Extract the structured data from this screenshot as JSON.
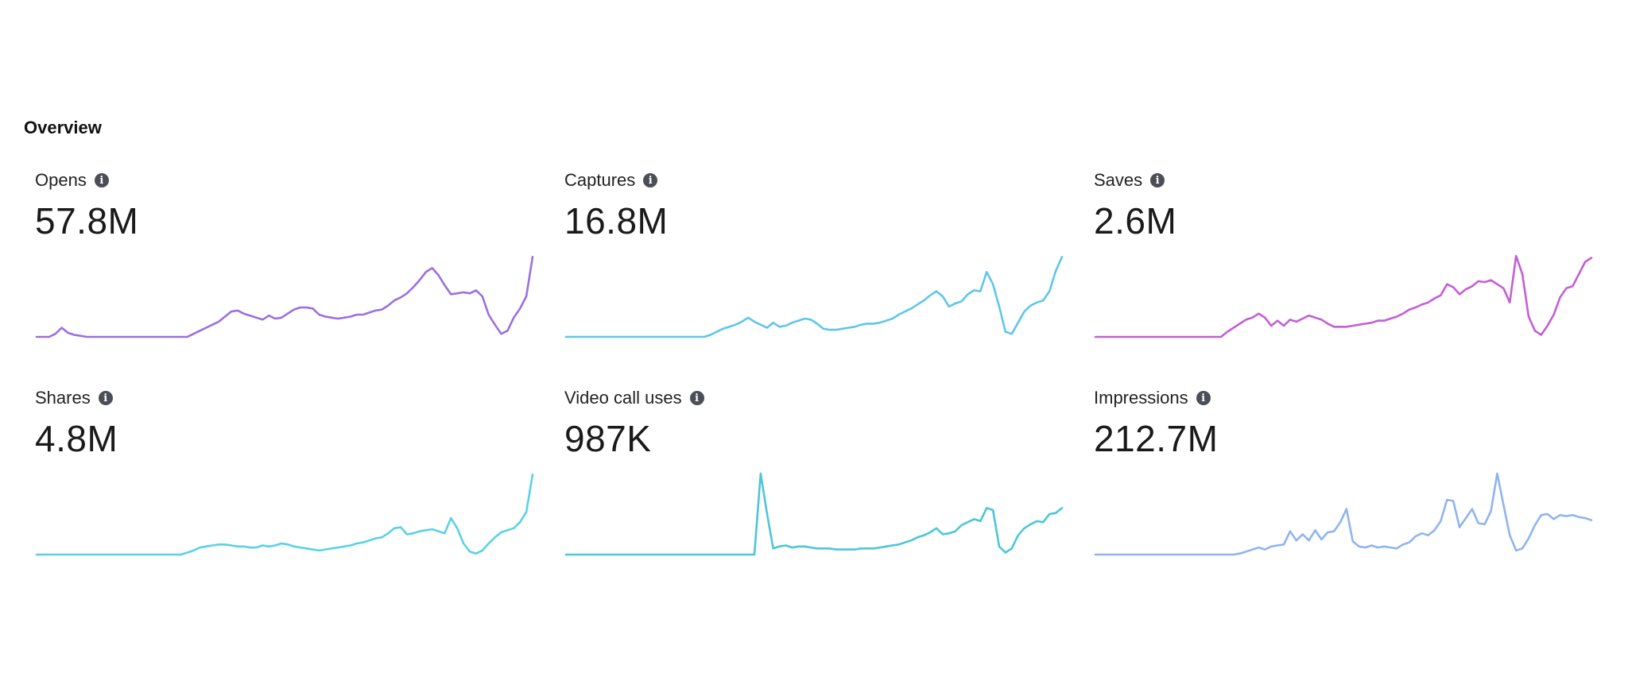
{
  "section": {
    "title": "Overview"
  },
  "info_icon": {
    "glyph": "i",
    "name": "info-icon"
  },
  "chart_data": [
    {
      "type": "line",
      "title": "Opens",
      "value_label": "57.8M",
      "color": "#9b6fe0",
      "x": [
        0,
        1,
        2,
        3,
        4,
        5,
        6,
        7,
        8,
        9,
        10,
        11,
        12,
        13,
        14,
        15,
        16,
        17,
        18,
        19,
        20,
        21,
        22,
        23,
        24,
        25,
        26,
        27,
        28,
        29,
        30,
        31,
        32,
        33,
        34,
        35,
        36,
        37,
        38,
        39,
        40,
        41,
        42,
        43,
        44,
        45,
        46,
        47,
        48,
        49,
        50,
        51,
        52,
        53,
        54,
        55,
        56,
        57,
        58,
        59,
        60,
        61,
        62,
        63,
        64,
        65,
        66,
        67,
        68,
        69,
        70,
        71,
        72,
        73,
        74,
        75,
        76,
        77,
        78,
        79
      ],
      "values": [
        0,
        0,
        0,
        0.3,
        0.9,
        0.4,
        0.2,
        0.1,
        0,
        0,
        0,
        0,
        0,
        0,
        0,
        0,
        0,
        0,
        0,
        0,
        0,
        0,
        0,
        0,
        0,
        0.3,
        0.6,
        0.9,
        1.2,
        1.5,
        2.0,
        2.5,
        2.6,
        2.3,
        2.1,
        1.9,
        1.7,
        2.1,
        1.8,
        1.9,
        2.3,
        2.7,
        2.9,
        2.9,
        2.8,
        2.2,
        2.0,
        1.9,
        1.8,
        1.9,
        2.0,
        2.2,
        2.2,
        2.4,
        2.6,
        2.7,
        3.1,
        3.6,
        3.9,
        4.3,
        4.9,
        5.6,
        6.4,
        6.8,
        6.1,
        5.1,
        4.2,
        4.3,
        4.4,
        4.3,
        4.6,
        4.0,
        2.2,
        1.2,
        0.3,
        0.6,
        1.9,
        2.8,
        4.0,
        7.9
      ],
      "ylim": [
        0,
        8
      ]
    },
    {
      "type": "line",
      "title": "Captures",
      "value_label": "16.8M",
      "color": "#5ec6ea",
      "x": [
        0,
        1,
        2,
        3,
        4,
        5,
        6,
        7,
        8,
        9,
        10,
        11,
        12,
        13,
        14,
        15,
        16,
        17,
        18,
        19,
        20,
        21,
        22,
        23,
        24,
        25,
        26,
        27,
        28,
        29,
        30,
        31,
        32,
        33,
        34,
        35,
        36,
        37,
        38,
        39,
        40,
        41,
        42,
        43,
        44,
        45,
        46,
        47,
        48,
        49,
        50,
        51,
        52,
        53,
        54,
        55,
        56,
        57,
        58,
        59,
        60,
        61,
        62,
        63,
        64,
        65,
        66,
        67,
        68,
        69,
        70,
        71,
        72,
        73,
        74,
        75,
        76,
        77,
        78,
        79
      ],
      "values": [
        0,
        0,
        0,
        0,
        0,
        0,
        0,
        0,
        0,
        0,
        0,
        0,
        0,
        0,
        0,
        0,
        0,
        0,
        0,
        0,
        0,
        0,
        0,
        0.2,
        0.5,
        0.8,
        1.0,
        1.2,
        1.5,
        1.9,
        1.5,
        1.2,
        0.9,
        1.4,
        1.0,
        1.1,
        1.4,
        1.6,
        1.8,
        1.7,
        1.3,
        0.8,
        0.7,
        0.7,
        0.8,
        0.9,
        1.0,
        1.2,
        1.3,
        1.3,
        1.4,
        1.6,
        1.8,
        2.2,
        2.5,
        2.8,
        3.2,
        3.6,
        4.1,
        4.5,
        4.0,
        3.0,
        3.3,
        3.5,
        4.2,
        4.6,
        4.5,
        6.4,
        5.2,
        3.0,
        0.5,
        0.3,
        1.4,
        2.5,
        3.1,
        3.4,
        3.6,
        4.5,
        6.5,
        7.9
      ],
      "ylim": [
        0,
        8
      ]
    },
    {
      "type": "line",
      "title": "Saves",
      "value_label": "2.6M",
      "color": "#c45ed6",
      "x": [
        0,
        1,
        2,
        3,
        4,
        5,
        6,
        7,
        8,
        9,
        10,
        11,
        12,
        13,
        14,
        15,
        16,
        17,
        18,
        19,
        20,
        21,
        22,
        23,
        24,
        25,
        26,
        27,
        28,
        29,
        30,
        31,
        32,
        33,
        34,
        35,
        36,
        37,
        38,
        39,
        40,
        41,
        42,
        43,
        44,
        45,
        46,
        47,
        48,
        49,
        50,
        51,
        52,
        53,
        54,
        55,
        56,
        57,
        58,
        59,
        60,
        61,
        62,
        63,
        64,
        65,
        66,
        67,
        68,
        69,
        70,
        71,
        72,
        73,
        74,
        75,
        76,
        77,
        78,
        79
      ],
      "values": [
        0,
        0,
        0,
        0,
        0,
        0,
        0,
        0,
        0,
        0,
        0,
        0,
        0,
        0,
        0,
        0,
        0,
        0,
        0,
        0,
        0,
        0.5,
        0.9,
        1.3,
        1.7,
        1.9,
        2.3,
        1.9,
        1.1,
        1.6,
        1.1,
        1.7,
        1.5,
        1.8,
        2.1,
        1.9,
        1.7,
        1.3,
        1.0,
        1.0,
        1.0,
        1.1,
        1.2,
        1.3,
        1.4,
        1.6,
        1.6,
        1.8,
        2.0,
        2.3,
        2.7,
        2.9,
        3.2,
        3.4,
        3.8,
        4.1,
        5.2,
        4.9,
        4.2,
        4.7,
        5.0,
        5.5,
        5.4,
        5.6,
        5.2,
        4.8,
        3.4,
        8.0,
        6.2,
        2.0,
        0.6,
        0.2,
        1.1,
        2.2,
        3.9,
        4.8,
        5.0,
        6.2,
        7.4,
        7.8
      ],
      "ylim": [
        0,
        8
      ]
    },
    {
      "type": "line",
      "title": "Shares",
      "value_label": "4.8M",
      "color": "#5ad1e6",
      "x": [
        0,
        1,
        2,
        3,
        4,
        5,
        6,
        7,
        8,
        9,
        10,
        11,
        12,
        13,
        14,
        15,
        16,
        17,
        18,
        19,
        20,
        21,
        22,
        23,
        24,
        25,
        26,
        27,
        28,
        29,
        30,
        31,
        32,
        33,
        34,
        35,
        36,
        37,
        38,
        39,
        40,
        41,
        42,
        43,
        44,
        45,
        46,
        47,
        48,
        49,
        50,
        51,
        52,
        53,
        54,
        55,
        56,
        57,
        58,
        59,
        60,
        61,
        62,
        63,
        64,
        65,
        66,
        67,
        68,
        69,
        70,
        71,
        72,
        73,
        74,
        75,
        76,
        77,
        78,
        79
      ],
      "values": [
        0,
        0,
        0,
        0,
        0,
        0,
        0,
        0,
        0,
        0,
        0,
        0,
        0,
        0,
        0,
        0,
        0,
        0,
        0,
        0,
        0,
        0,
        0,
        0,
        0.2,
        0.4,
        0.7,
        0.8,
        0.9,
        1.0,
        1.0,
        0.9,
        0.8,
        0.8,
        0.7,
        0.7,
        0.9,
        0.8,
        0.9,
        1.1,
        1.0,
        0.8,
        0.7,
        0.6,
        0.5,
        0.4,
        0.5,
        0.6,
        0.7,
        0.8,
        0.9,
        1.1,
        1.2,
        1.4,
        1.6,
        1.7,
        2.1,
        2.6,
        2.7,
        2.0,
        2.1,
        2.3,
        2.4,
        2.5,
        2.3,
        2.1,
        3.6,
        2.6,
        1.1,
        0.3,
        0.1,
        0.4,
        1.1,
        1.7,
        2.2,
        2.4,
        2.6,
        3.2,
        4.2,
        7.9
      ],
      "ylim": [
        0,
        8
      ]
    },
    {
      "type": "line",
      "title": "Video call uses",
      "value_label": "987K",
      "color": "#4cc6d8",
      "x": [
        0,
        1,
        2,
        3,
        4,
        5,
        6,
        7,
        8,
        9,
        10,
        11,
        12,
        13,
        14,
        15,
        16,
        17,
        18,
        19,
        20,
        21,
        22,
        23,
        24,
        25,
        26,
        27,
        28,
        29,
        30,
        31,
        32,
        33,
        34,
        35,
        36,
        37,
        38,
        39,
        40,
        41,
        42,
        43,
        44,
        45,
        46,
        47,
        48,
        49,
        50,
        51,
        52,
        53,
        54,
        55,
        56,
        57,
        58,
        59,
        60,
        61,
        62,
        63,
        64,
        65,
        66,
        67,
        68,
        69,
        70,
        71,
        72,
        73,
        74,
        75,
        76,
        77,
        78,
        79
      ],
      "values": [
        0,
        0,
        0,
        0,
        0,
        0,
        0,
        0,
        0,
        0,
        0,
        0,
        0,
        0,
        0,
        0,
        0,
        0,
        0,
        0,
        0,
        0,
        0,
        0,
        0,
        0,
        0,
        0,
        0,
        0,
        0,
        8.0,
        4.1,
        0.6,
        0.8,
        0.9,
        0.7,
        0.8,
        0.8,
        0.7,
        0.6,
        0.6,
        0.6,
        0.5,
        0.5,
        0.5,
        0.5,
        0.6,
        0.6,
        0.6,
        0.7,
        0.8,
        0.9,
        1.0,
        1.2,
        1.4,
        1.7,
        1.9,
        2.2,
        2.6,
        2.0,
        2.1,
        2.3,
        2.9,
        3.2,
        3.5,
        3.3,
        4.6,
        4.4,
        0.8,
        0.2,
        0.6,
        1.9,
        2.6,
        3.0,
        3.3,
        3.2,
        4.0,
        4.1,
        4.6
      ],
      "ylim": [
        0,
        8
      ]
    },
    {
      "type": "line",
      "title": "Impressions",
      "value_label": "212.7M",
      "color": "#8fb4ef",
      "x": [
        0,
        1,
        2,
        3,
        4,
        5,
        6,
        7,
        8,
        9,
        10,
        11,
        12,
        13,
        14,
        15,
        16,
        17,
        18,
        19,
        20,
        21,
        22,
        23,
        24,
        25,
        26,
        27,
        28,
        29,
        30,
        31,
        32,
        33,
        34,
        35,
        36,
        37,
        38,
        39,
        40,
        41,
        42,
        43,
        44,
        45,
        46,
        47,
        48,
        49,
        50,
        51,
        52,
        53,
        54,
        55,
        56,
        57,
        58,
        59,
        60,
        61,
        62,
        63,
        64,
        65,
        66,
        67,
        68,
        69,
        70,
        71,
        72,
        73,
        74,
        75,
        76,
        77,
        78,
        79
      ],
      "values": [
        0,
        0,
        0,
        0,
        0,
        0,
        0,
        0,
        0,
        0,
        0,
        0,
        0,
        0,
        0,
        0,
        0,
        0,
        0,
        0,
        0,
        0,
        0,
        0.1,
        0.3,
        0.5,
        0.7,
        0.5,
        0.8,
        0.9,
        1.0,
        2.3,
        1.4,
        2.0,
        1.4,
        2.4,
        1.5,
        2.2,
        2.3,
        3.2,
        4.5,
        1.3,
        0.8,
        0.7,
        0.9,
        0.7,
        0.8,
        0.7,
        0.6,
        1.0,
        1.2,
        1.8,
        2.1,
        1.9,
        2.4,
        3.3,
        5.4,
        5.3,
        2.7,
        3.6,
        4.5,
        3.1,
        3.0,
        4.3,
        8.0,
        4.9,
        1.9,
        0.4,
        0.6,
        1.6,
        2.9,
        3.9,
        4.0,
        3.5,
        3.9,
        3.8,
        3.9,
        3.7,
        3.6,
        3.4
      ],
      "ylim": [
        0,
        8
      ]
    }
  ]
}
